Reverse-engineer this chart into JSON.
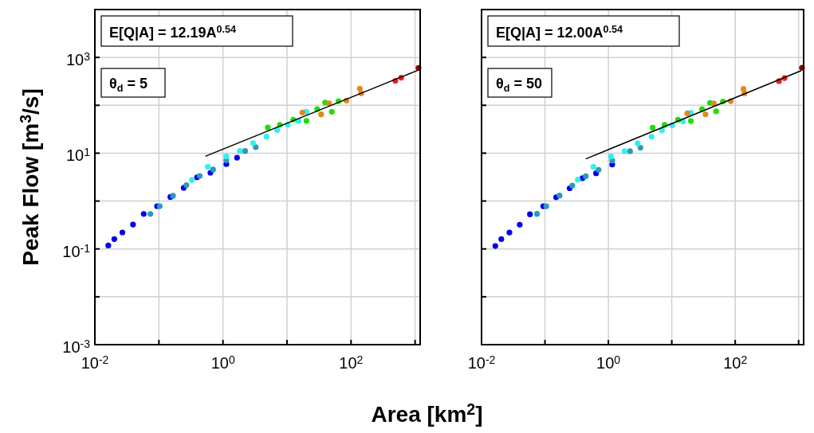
{
  "chart_data": [
    {
      "type": "scatter",
      "ylabel": "Peak Flow [m$^{3}$/s]",
      "log": "xy",
      "grid": true,
      "marker": "circle",
      "xlim": [
        0.01,
        1200
      ],
      "ylim": [
        0.001,
        10000
      ],
      "xticks": [
        {
          "value": 0.01,
          "label": "10$^{-2}$"
        },
        {
          "value": 0.1,
          "label": null
        },
        {
          "value": 1,
          "label": "10$^{0}$"
        },
        {
          "value": 10,
          "label": null
        },
        {
          "value": 100,
          "label": "10$^{2}$"
        },
        {
          "value": 1000,
          "label": null
        }
      ],
      "yticks": [
        {
          "value": 0.001,
          "label": "10$^{-3}$"
        },
        {
          "value": 0.01,
          "label": null
        },
        {
          "value": 0.1,
          "label": "10$^{-1}$"
        },
        {
          "value": 1,
          "label": null
        },
        {
          "value": 10,
          "label": "10$^{1}$"
        },
        {
          "value": 100,
          "label": null
        },
        {
          "value": 1000,
          "label": "10$^{3}$"
        }
      ],
      "annotations": [
        "E[Q|A] = 12.19A$^{0.54}$",
        "θ$_{d}$ = 5"
      ],
      "series": [
        {
          "color": "#0000ee",
          "x": [
            0.0162,
            0.0201,
            0.0269,
            0.0394,
            0.0579,
            0.0935,
            0.151,
            0.244,
            0.394,
            0.637,
            1.13,
            1.66
          ],
          "values": [
            0.118,
            0.161,
            0.221,
            0.323,
            0.536,
            0.782,
            1.22,
            1.89,
            3.13,
            3.9,
            5.89,
            8.07
          ]
        },
        {
          "color": "#2a9bb8",
          "x": [
            0.0736,
            0.103,
            0.166,
            0.269,
            0.434,
            0.701,
            1.13,
            2.22,
            3.25
          ],
          "values": [
            0.536,
            0.782,
            1.29,
            2.15,
            3.34,
            4.57,
            7.11,
            11.1,
            13.4
          ]
        },
        {
          "color": "#33eeee",
          "x": [
            0.326,
            0.579,
            1.13,
            1.83,
            2.96,
            4.78,
            7.01,
            10.3,
            15.1,
            20.1
          ],
          "values": [
            2.76,
            5.19,
            8.59,
            11.1,
            16.2,
            22.1,
            30.3,
            39.1,
            47.2,
            73.4
          ]
        },
        {
          "color": "#22dd00",
          "x": [
            5.01,
            7.72,
            12.5,
            20.1,
            29.6,
            39.4,
            50.1,
            63.7
          ],
          "values": [
            34.4,
            39.1,
            50.2,
            47.2,
            83.3,
            114,
            73.4,
            122
          ]
        },
        {
          "color": "#e08820",
          "x": [
            17.4,
            34.1,
            45.5,
            84.9,
            137,
            144
          ],
          "values": [
            70.6,
            64.7,
            110,
            125,
            223,
            177
          ]
        },
        {
          "color": "#ee2020",
          "x": [
            492,
            607
          ],
          "values": [
            325,
            378
          ]
        },
        {
          "color": "#8b0000",
          "x": [
            1132
          ],
          "values": [
            604
          ]
        },
        {
          "type": "line",
          "marker": "none",
          "color": "#000000",
          "x": [
            0.53,
            1100
          ],
          "values": [
            8.6,
            537
          ]
        }
      ]
    },
    {
      "type": "scatter",
      "xlabel": "Area [km$^{2}$]",
      "log": "xy",
      "grid": true,
      "marker": "circle",
      "tick_labels": "x",
      "xlim": [
        0.01,
        1200
      ],
      "ylim": [
        0.001,
        10000
      ],
      "xticks": [
        {
          "value": 0.01,
          "label": "10$^{-2}$"
        },
        {
          "value": 0.1,
          "label": null
        },
        {
          "value": 1,
          "label": "10$^{0}$"
        },
        {
          "value": 10,
          "label": null
        },
        {
          "value": 100,
          "label": "10$^{2}$"
        },
        {
          "value": 1000,
          "label": null
        }
      ],
      "yticks": [
        {
          "value": 0.001,
          "label": null
        },
        {
          "value": 0.01,
          "label": null
        },
        {
          "value": 0.1,
          "label": null
        },
        {
          "value": 1,
          "label": null
        },
        {
          "value": 10,
          "label": null
        },
        {
          "value": 100,
          "label": null
        },
        {
          "value": 1000,
          "label": null
        }
      ],
      "annotations": [
        "E[Q|A] = 12.00A$^{0.54}$",
        "θ$_{d}$ = 50"
      ],
      "series": [
        {
          "color": "#0000ee",
          "x": [
            0.0165,
            0.0205,
            0.0275,
            0.04,
            0.058,
            0.094,
            0.15,
            0.245,
            0.39,
            0.64,
            1.15
          ],
          "values": [
            0.115,
            0.16,
            0.22,
            0.32,
            0.53,
            0.78,
            1.2,
            1.85,
            3.0,
            3.8,
            5.8
          ]
        },
        {
          "color": "#2a9bb8",
          "x": [
            0.075,
            0.105,
            0.17,
            0.27,
            0.44,
            0.7,
            1.15,
            2.2,
            3.2
          ],
          "values": [
            0.54,
            0.78,
            1.3,
            2.1,
            3.3,
            4.5,
            7.0,
            11.0,
            13.0
          ]
        },
        {
          "color": "#33eeee",
          "x": [
            0.33,
            0.58,
            1.1,
            1.8,
            2.9,
            4.8,
            7.0,
            10.2,
            15.0,
            20.0
          ],
          "values": [
            2.8,
            5.2,
            8.5,
            11.0,
            16.0,
            22.0,
            30.0,
            38.0,
            46.0,
            70.0
          ]
        },
        {
          "color": "#22dd00",
          "x": [
            5.0,
            7.7,
            12.5,
            20.0,
            30.0,
            40.0,
            50.0,
            64.0
          ],
          "values": [
            34.0,
            39.0,
            50.0,
            47.0,
            83.0,
            112,
            75.0,
            120
          ]
        },
        {
          "color": "#e08820",
          "x": [
            17.5,
            34.0,
            46.0,
            85.0,
            135,
            140
          ],
          "values": [
            68.0,
            65.0,
            110,
            122,
            220,
            178
          ]
        },
        {
          "color": "#ee2020",
          "x": [
            490,
            600
          ],
          "values": [
            320,
            370
          ]
        },
        {
          "color": "#8b0000",
          "x": [
            1130
          ],
          "values": [
            610
          ]
        },
        {
          "type": "line",
          "marker": "none",
          "color": "#000000",
          "x": [
            0.44,
            1100
          ],
          "values": [
            7.6,
            529
          ]
        }
      ]
    }
  ]
}
